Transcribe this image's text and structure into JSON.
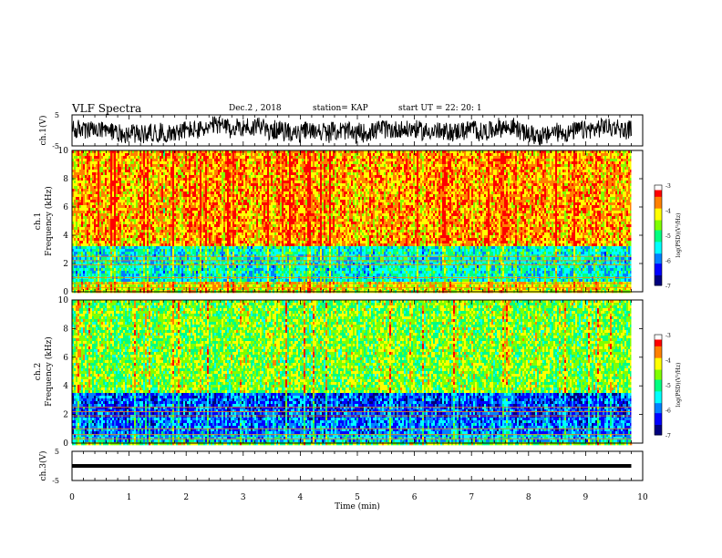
{
  "header": {
    "title": "VLF Spectra",
    "date": "Dec.2  , 2018",
    "station": "station= KAP",
    "start_ut": "start  UT  =   22: 20: 1"
  },
  "colors": {
    "colormap": [
      "#00007f",
      "#0000ff",
      "#0080ff",
      "#00ffff",
      "#00ff80",
      "#80ff00",
      "#ffff00",
      "#ff8000",
      "#ff0000",
      "#ffffff"
    ]
  },
  "chart_data": [
    {
      "type": "line",
      "ylabel": "ch.1(V)",
      "ylim": [
        -5,
        5
      ],
      "yticks": [
        "5",
        "-5"
      ],
      "description_free": true,
      "amplitude_range_V": [
        -4.5,
        4.5
      ]
    },
    {
      "type": "heatmap",
      "ylabel": "ch.1\nFrequency  (kHz)",
      "ylim": [
        0,
        10
      ],
      "yticks": [
        "0",
        "2",
        "4",
        "6",
        "8",
        "10"
      ],
      "colorbar": {
        "label": "log(PSD)(V²/Hz)",
        "range": [
          -7,
          -3
        ],
        "ticks": [
          "-3",
          "-4",
          "-5",
          "-6",
          "-7"
        ]
      },
      "bands": [
        {
          "fmin": 0,
          "fmax": 0.8,
          "level": -4.2
        },
        {
          "fmin": 0.8,
          "fmax": 3.3,
          "level": -5.3
        },
        {
          "fmin": 3.3,
          "fmax": 10,
          "level": -3.8
        }
      ]
    },
    {
      "type": "heatmap",
      "ylabel": "ch.2\nFrequency  (kHz)",
      "ylim": [
        0,
        10
      ],
      "yticks": [
        "0",
        "2",
        "4",
        "6",
        "8",
        "10"
      ],
      "colorbar": {
        "label": "log(PSD)(V²/Hz)",
        "range": [
          -7,
          -3
        ],
        "ticks": [
          "-3",
          "-4",
          "-5",
          "-6",
          "-7"
        ]
      },
      "bands": [
        {
          "fmin": 0,
          "fmax": 0.6,
          "level": -5.6
        },
        {
          "fmin": 0.6,
          "fmax": 1.8,
          "level": -5.9
        },
        {
          "fmin": 1.8,
          "fmax": 3.5,
          "level": -6.1
        },
        {
          "fmin": 3.5,
          "fmax": 10,
          "level": -4.6
        }
      ]
    },
    {
      "type": "line",
      "ylabel": "ch.3(V)",
      "ylim": [
        -5,
        5
      ],
      "yticks": [
        "5",
        "-5"
      ],
      "constant_value": 0
    }
  ],
  "x_axis": {
    "label": "Time  (min)",
    "range": [
      0,
      10
    ],
    "ticks": [
      "0",
      "1",
      "2",
      "3",
      "4",
      "5",
      "6",
      "7",
      "8",
      "9",
      "10"
    ],
    "data_end": 9.8
  }
}
